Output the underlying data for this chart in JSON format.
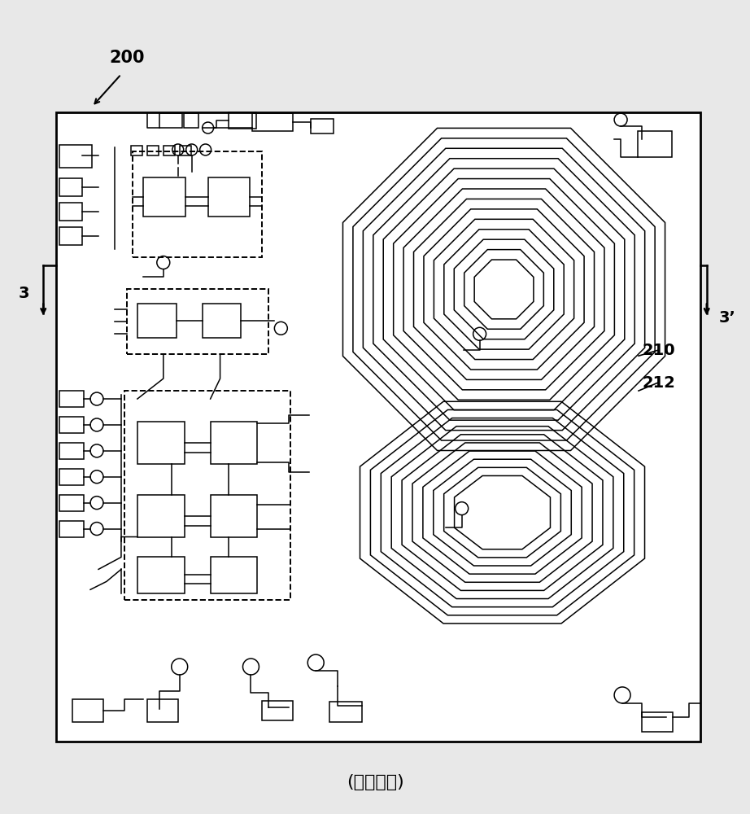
{
  "title": "(现有技术)",
  "label_200": "200",
  "label_210": "210",
  "label_212": "212",
  "label_3": "3",
  "label_3p": "3’",
  "bg_color": "#e8e8e8",
  "board_color": "#ffffff",
  "line_color": "#000000",
  "board_lw": 2.0,
  "trace_lw": 1.1,
  "dashed_lw": 1.4
}
